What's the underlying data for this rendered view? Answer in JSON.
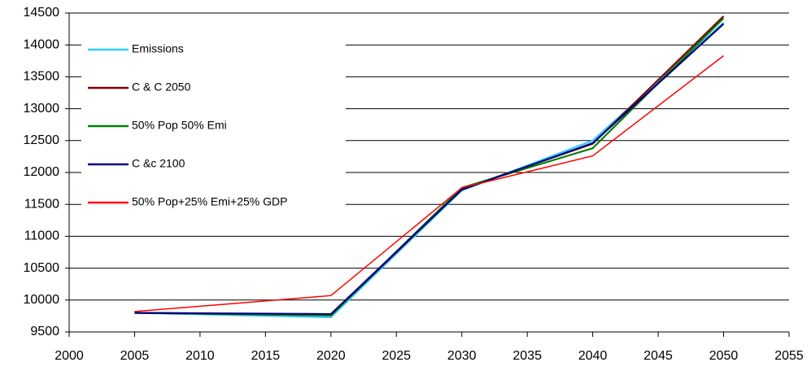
{
  "chart_data": {
    "type": "line",
    "x": [
      2005,
      2020,
      2030,
      2040,
      2050
    ],
    "series": [
      {
        "name": "Emissions",
        "color": "#33ccff",
        "values": [
          9800,
          9730,
          11720,
          12500,
          14350
        ]
      },
      {
        "name": "C & C 2050",
        "color": "#800000",
        "values": [
          9800,
          9760,
          11740,
          12450,
          14450
        ]
      },
      {
        "name": "50% Pop 50% Emi",
        "color": "#008000",
        "values": [
          9800,
          9760,
          11760,
          12380,
          14420
        ]
      },
      {
        "name": "C &c 2100",
        "color": "#000080",
        "values": [
          9800,
          9780,
          11730,
          12460,
          14330
        ]
      },
      {
        "name": "50% Pop+25% Emi+25% GDP",
        "color": "#ff0000",
        "values": [
          9820,
          10070,
          11760,
          12260,
          13830
        ]
      }
    ],
    "xlim": [
      2000,
      2055
    ],
    "xticks": [
      2000,
      2005,
      2010,
      2015,
      2020,
      2025,
      2030,
      2035,
      2040,
      2045,
      2050,
      2055
    ],
    "ylim": [
      9500,
      14500
    ],
    "yticks": [
      9500,
      10000,
      10500,
      11000,
      11500,
      12000,
      12500,
      13000,
      13500,
      14000,
      14500
    ],
    "grid": true,
    "legend": "upper-left"
  }
}
